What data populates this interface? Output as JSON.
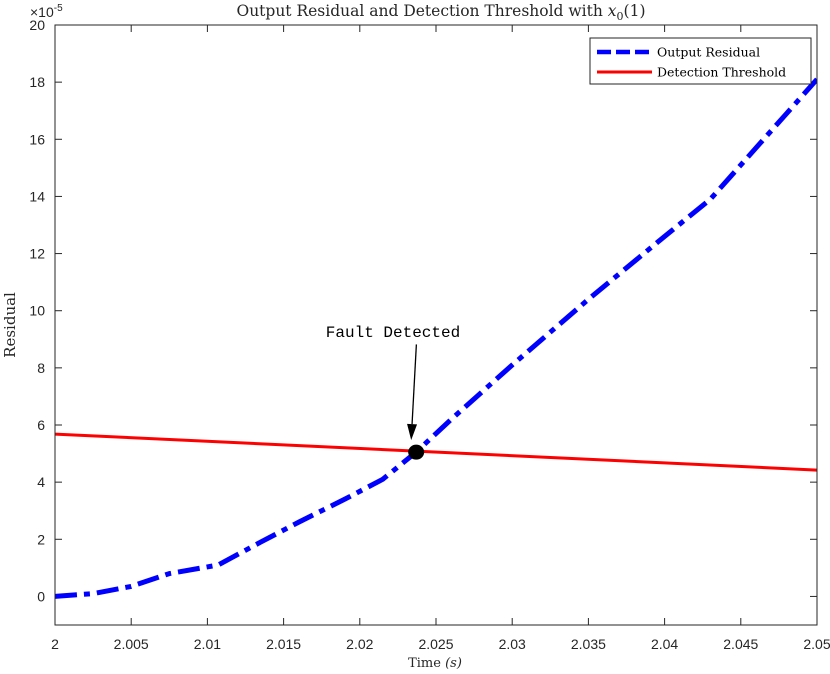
{
  "chart_data": {
    "type": "line",
    "title_main": "Output Residual and Detection Threshold with ",
    "title_math_var": "x",
    "title_math_sub": "0",
    "title_math_arg": "(1)",
    "xlabel_main": "Time ",
    "xlabel_unit": "(s)",
    "ylabel": "Residual",
    "y_exponent_base": "×10",
    "y_exponent_power": "-5",
    "xlim": [
      2,
      2.05
    ],
    "ylim": [
      -1,
      20
    ],
    "x_ticks": [
      2,
      2.005,
      2.01,
      2.015,
      2.02,
      2.025,
      2.03,
      2.035,
      2.04,
      2.045,
      2.05
    ],
    "x_tick_labels": [
      "2",
      "2.005",
      "2.01",
      "2.015",
      "2.02",
      "2.025",
      "2.03",
      "2.035",
      "2.04",
      "2.045",
      "2.05"
    ],
    "y_ticks": [
      0,
      2,
      4,
      6,
      8,
      10,
      12,
      14,
      16,
      18,
      20
    ],
    "y_tick_labels": [
      "0",
      "2",
      "4",
      "6",
      "8",
      "10",
      "12",
      "14",
      "16",
      "18",
      "20"
    ],
    "grid": false,
    "legend_position": "top-right",
    "series": [
      {
        "name": "Output Residual",
        "color": "#0000ff",
        "style": "dash-dot",
        "x": [
          2,
          2.0025,
          2.005,
          2.0075,
          2.0107,
          2.0135,
          2.016,
          2.019,
          2.0215,
          2.0237,
          2.026,
          2.03,
          2.035,
          2.04,
          2.043,
          2.046,
          2.048,
          2.05
        ],
        "y": [
          0,
          0.1,
          0.35,
          0.8,
          1.1,
          1.9,
          2.6,
          3.4,
          4.1,
          5.05,
          6.2,
          8.1,
          10.4,
          12.6,
          13.9,
          15.7,
          16.9,
          18.1
        ]
      },
      {
        "name": "Detection Threshold",
        "color": "#ff0000",
        "style": "solid",
        "x": [
          2,
          2.05
        ],
        "y": [
          5.68,
          4.42
        ]
      }
    ],
    "annotations": [
      {
        "text": "Fault Detected",
        "marker_x": 2.0237,
        "marker_y": 5.05,
        "text_x": 2.0245,
        "text_y": 9.1
      }
    ]
  }
}
